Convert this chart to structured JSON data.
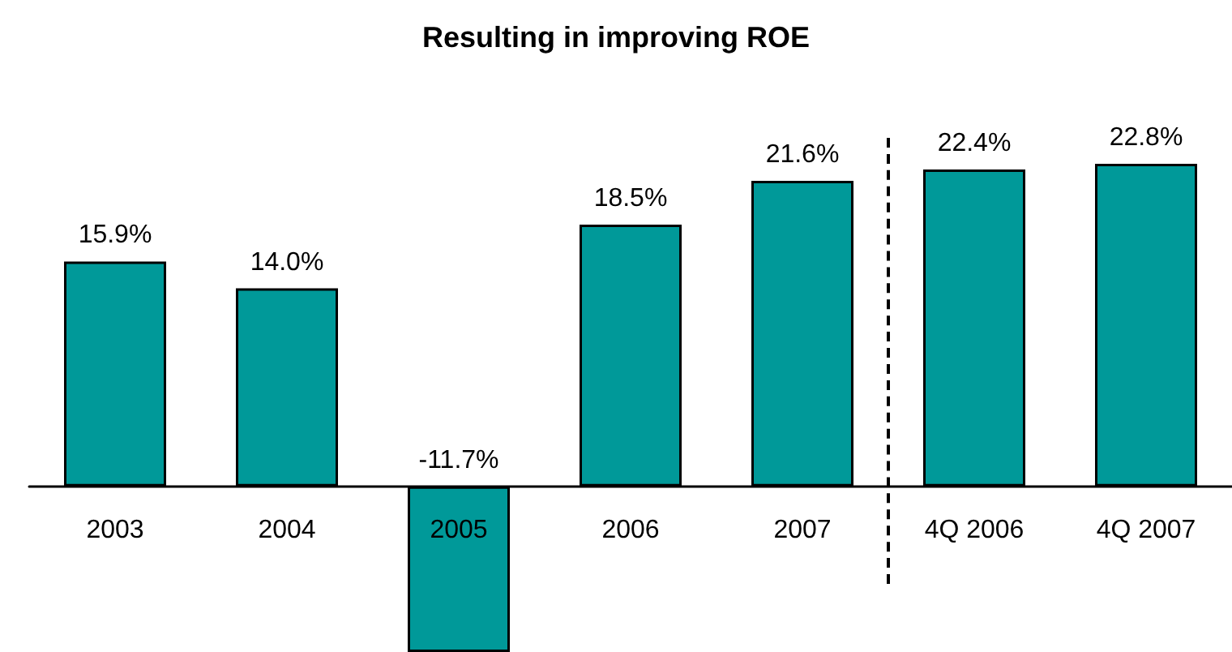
{
  "chart_data": {
    "type": "bar",
    "title": "Resulting in improving ROE",
    "categories": [
      "2003",
      "2004",
      "2005",
      "2006",
      "2007",
      "4Q 2006",
      "4Q 2007"
    ],
    "values": [
      15.9,
      14.0,
      -11.7,
      18.5,
      21.6,
      22.4,
      22.8
    ],
    "color": "#009999",
    "value_labels": [
      "15.9%",
      "14.0%",
      "-11.7%",
      "18.5%",
      "21.6%",
      "22.4%",
      "22.8%"
    ],
    "ylim": [
      -11.7,
      22.8
    ],
    "tick_labels": "x"
  }
}
